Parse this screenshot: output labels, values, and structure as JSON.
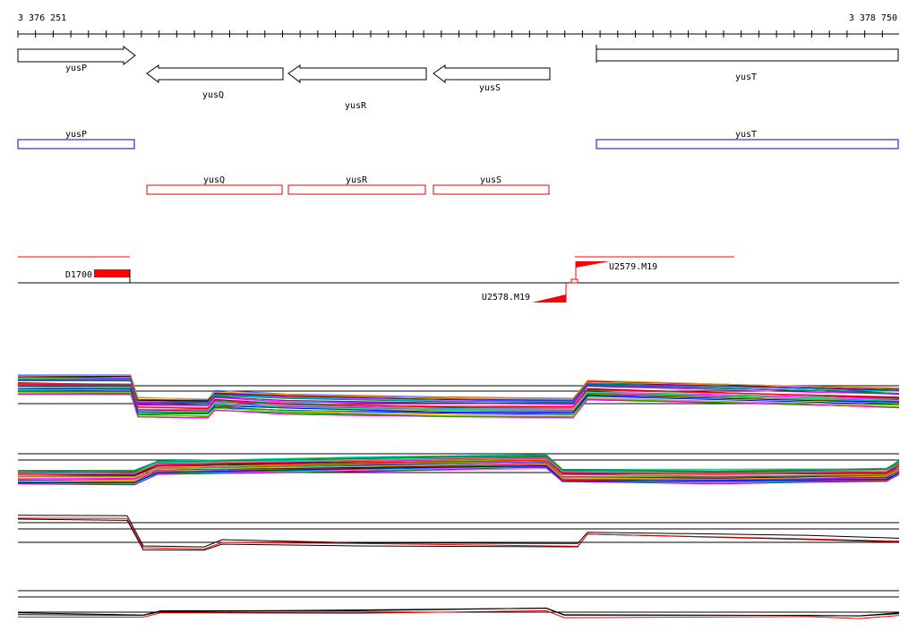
{
  "coordinates": {
    "start": "3 376 251",
    "end": "3 378 750"
  },
  "colors": {
    "arrow_stroke": "#000000",
    "gene_box_blue": "#0000cc",
    "gene_box_red": "#dd0000",
    "feature_red": "#ff0000",
    "baseline": "#000000",
    "profile_red": "#ee0000"
  },
  "genes": [
    {
      "label": "yusP",
      "strand": "+"
    },
    {
      "label": "yusQ",
      "strand": "-"
    },
    {
      "label": "yusR",
      "strand": "-"
    },
    {
      "label": "yusS",
      "strand": "-"
    },
    {
      "label": "yusT",
      "strand": "+"
    }
  ],
  "annotation_boxes": [
    {
      "label": "yusP",
      "color": "blue"
    },
    {
      "label": "yusT",
      "color": "blue"
    },
    {
      "label": "yusQ",
      "color": "red"
    },
    {
      "label": "yusR",
      "color": "red"
    },
    {
      "label": "yusS",
      "color": "red"
    }
  ],
  "features": [
    {
      "label": "D1700",
      "type": "block"
    },
    {
      "label": "U2579.M19",
      "type": "wedge-right"
    },
    {
      "label": "U2578.M19",
      "type": "wedge-left"
    }
  ],
  "tracks": [
    {
      "name": "expression-profile-1",
      "multicolor": true
    },
    {
      "name": "expression-profile-2",
      "multicolor": true
    },
    {
      "name": "expression-profile-3",
      "multicolor": false
    },
    {
      "name": "expression-profile-4",
      "multicolor": false
    }
  ]
}
